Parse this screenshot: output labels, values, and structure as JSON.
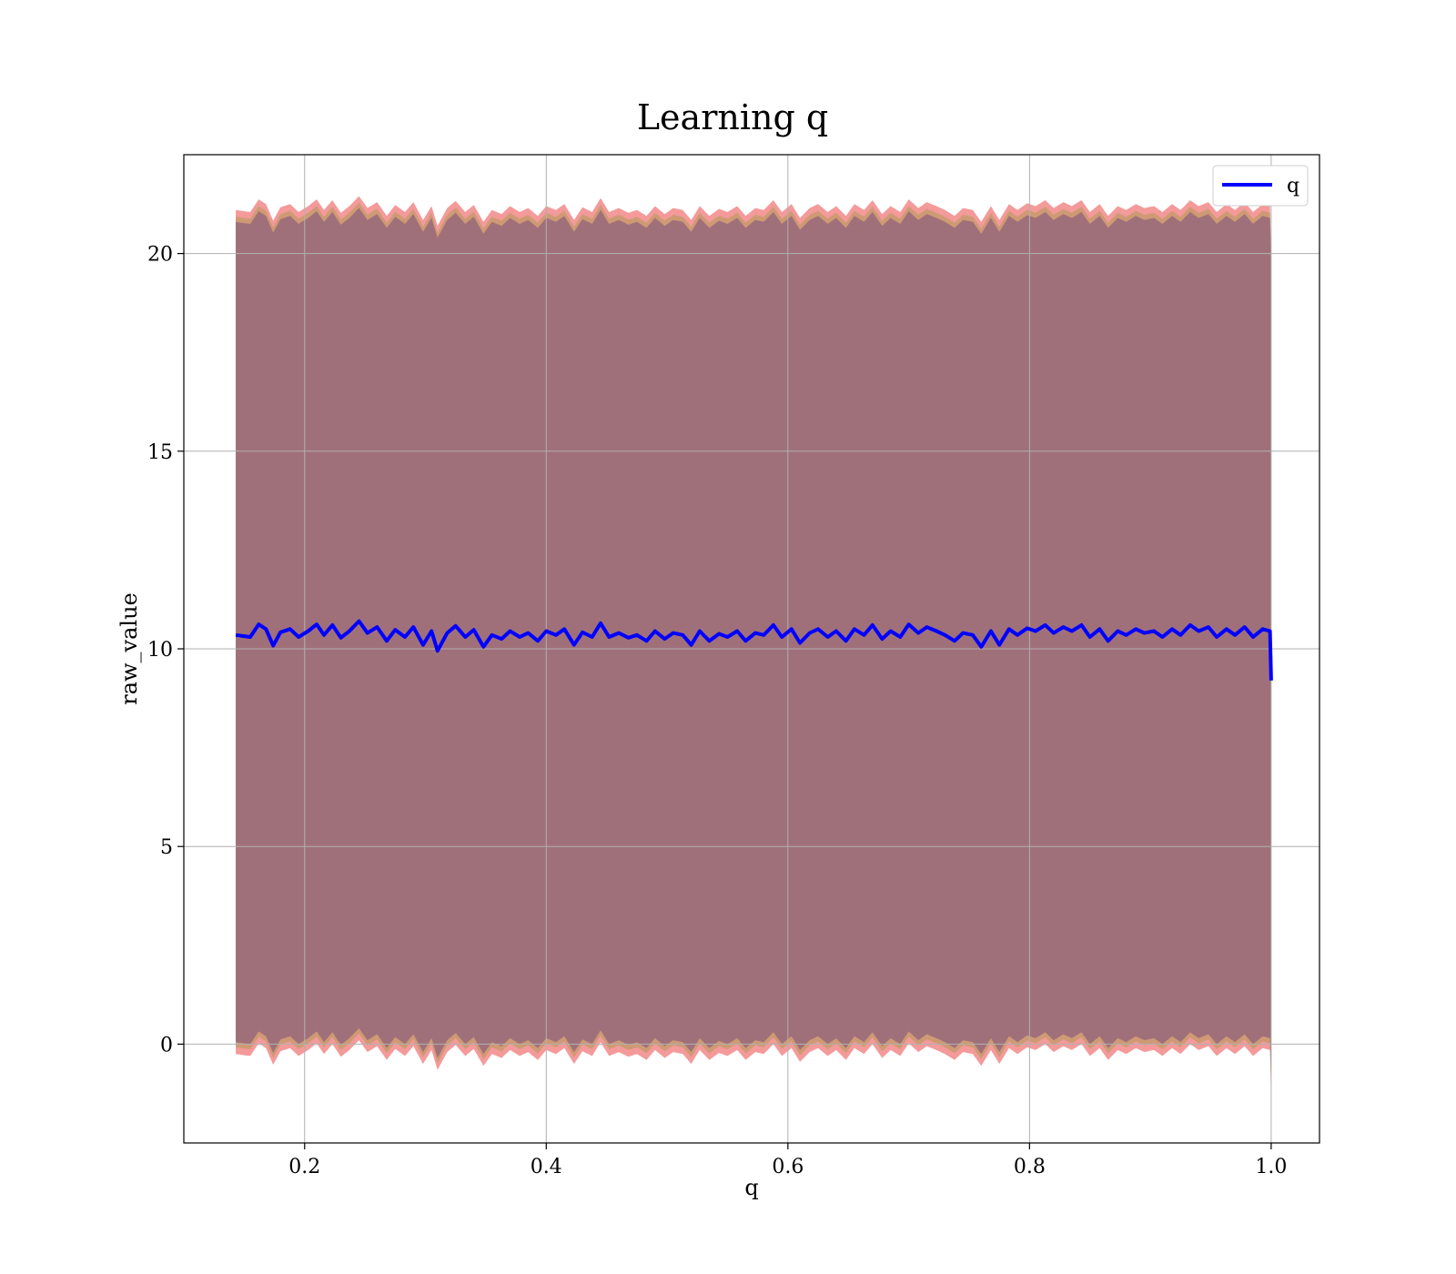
{
  "chart_data": {
    "type": "line",
    "title": "Learning q",
    "xlabel": "q",
    "ylabel": "raw_value",
    "xlim": [
      0.1,
      1.04
    ],
    "ylim": [
      -2.5,
      22.5
    ],
    "x_ticks": [
      0.2,
      0.4,
      0.6,
      0.8,
      1.0
    ],
    "x_tick_labels": [
      "0.2",
      "0.4",
      "0.6",
      "0.8",
      "1.0"
    ],
    "y_ticks": [
      0,
      5,
      10,
      15,
      20
    ],
    "y_tick_labels": [
      "0",
      "5",
      "10",
      "15",
      "20"
    ],
    "grid": true,
    "legend_position": "top-right",
    "series": [
      {
        "name": "q",
        "color": "#0000ff",
        "x": [
          0.143,
          0.15,
          0.155,
          0.162,
          0.168,
          0.174,
          0.18,
          0.188,
          0.195,
          0.203,
          0.21,
          0.216,
          0.223,
          0.23,
          0.237,
          0.245,
          0.252,
          0.26,
          0.268,
          0.275,
          0.283,
          0.29,
          0.298,
          0.305,
          0.31,
          0.318,
          0.325,
          0.333,
          0.34,
          0.348,
          0.355,
          0.363,
          0.37,
          0.378,
          0.385,
          0.393,
          0.4,
          0.408,
          0.415,
          0.423,
          0.43,
          0.438,
          0.445,
          0.452,
          0.46,
          0.468,
          0.475,
          0.483,
          0.49,
          0.498,
          0.505,
          0.513,
          0.52,
          0.527,
          0.535,
          0.543,
          0.55,
          0.558,
          0.565,
          0.573,
          0.58,
          0.588,
          0.595,
          0.603,
          0.61,
          0.618,
          0.625,
          0.633,
          0.64,
          0.648,
          0.655,
          0.663,
          0.67,
          0.678,
          0.685,
          0.693,
          0.7,
          0.708,
          0.715,
          0.723,
          0.73,
          0.738,
          0.745,
          0.753,
          0.76,
          0.768,
          0.775,
          0.783,
          0.79,
          0.798,
          0.805,
          0.813,
          0.82,
          0.828,
          0.835,
          0.843,
          0.85,
          0.858,
          0.865,
          0.873,
          0.88,
          0.888,
          0.895,
          0.903,
          0.91,
          0.918,
          0.925,
          0.933,
          0.94,
          0.948,
          0.955,
          0.963,
          0.97,
          0.978,
          0.985,
          0.993,
          0.999,
          1.0
        ],
        "y": [
          10.35,
          10.32,
          10.3,
          10.62,
          10.5,
          10.08,
          10.42,
          10.5,
          10.3,
          10.45,
          10.62,
          10.35,
          10.6,
          10.28,
          10.45,
          10.7,
          10.4,
          10.55,
          10.2,
          10.48,
          10.3,
          10.55,
          10.1,
          10.45,
          9.95,
          10.4,
          10.58,
          10.3,
          10.48,
          10.05,
          10.35,
          10.25,
          10.45,
          10.3,
          10.4,
          10.2,
          10.45,
          10.35,
          10.5,
          10.1,
          10.42,
          10.3,
          10.65,
          10.3,
          10.4,
          10.28,
          10.35,
          10.2,
          10.45,
          10.25,
          10.4,
          10.35,
          10.1,
          10.45,
          10.2,
          10.38,
          10.3,
          10.45,
          10.2,
          10.4,
          10.35,
          10.6,
          10.3,
          10.5,
          10.15,
          10.4,
          10.5,
          10.3,
          10.45,
          10.2,
          10.5,
          10.35,
          10.6,
          10.25,
          10.45,
          10.3,
          10.62,
          10.4,
          10.55,
          10.45,
          10.35,
          10.2,
          10.4,
          10.35,
          10.05,
          10.45,
          10.1,
          10.5,
          10.35,
          10.52,
          10.45,
          10.6,
          10.4,
          10.55,
          10.45,
          10.6,
          10.3,
          10.5,
          10.2,
          10.45,
          10.35,
          10.5,
          10.4,
          10.45,
          10.3,
          10.5,
          10.35,
          10.6,
          10.45,
          10.55,
          10.3,
          10.5,
          10.35,
          10.55,
          10.3,
          10.5,
          10.45,
          9.2
        ]
      }
    ],
    "band": {
      "color": "#a0707a",
      "edge_color": "#f07878",
      "upper_offset": 10.5,
      "lower_offset": -10.35
    }
  }
}
